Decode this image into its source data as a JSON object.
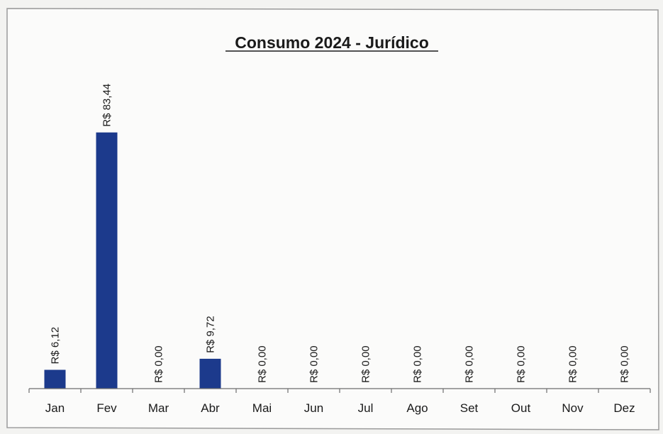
{
  "chart_data": {
    "type": "bar",
    "title": "Consumo 2024 - Jurídico",
    "categories": [
      "Jan",
      "Fev",
      "Mar",
      "Abr",
      "Mai",
      "Jun",
      "Jul",
      "Ago",
      "Set",
      "Out",
      "Nov",
      "Dez"
    ],
    "values": [
      6.12,
      83.44,
      0.0,
      9.72,
      0.0,
      0.0,
      0.0,
      0.0,
      0.0,
      0.0,
      0.0,
      0.0
    ],
    "data_labels": [
      "R$ 6,12",
      "R$ 83,44",
      "R$ 0,00",
      "R$ 9,72",
      "R$ 0,00",
      "R$ 0,00",
      "R$ 0,00",
      "R$ 0,00",
      "R$ 0,00",
      "R$ 0,00",
      "R$ 0,00",
      "R$ 0,00"
    ],
    "xlabel": "",
    "ylabel": "",
    "ylim": [
      0,
      85
    ],
    "grid": false,
    "bar_color": "#1c3a8c"
  }
}
